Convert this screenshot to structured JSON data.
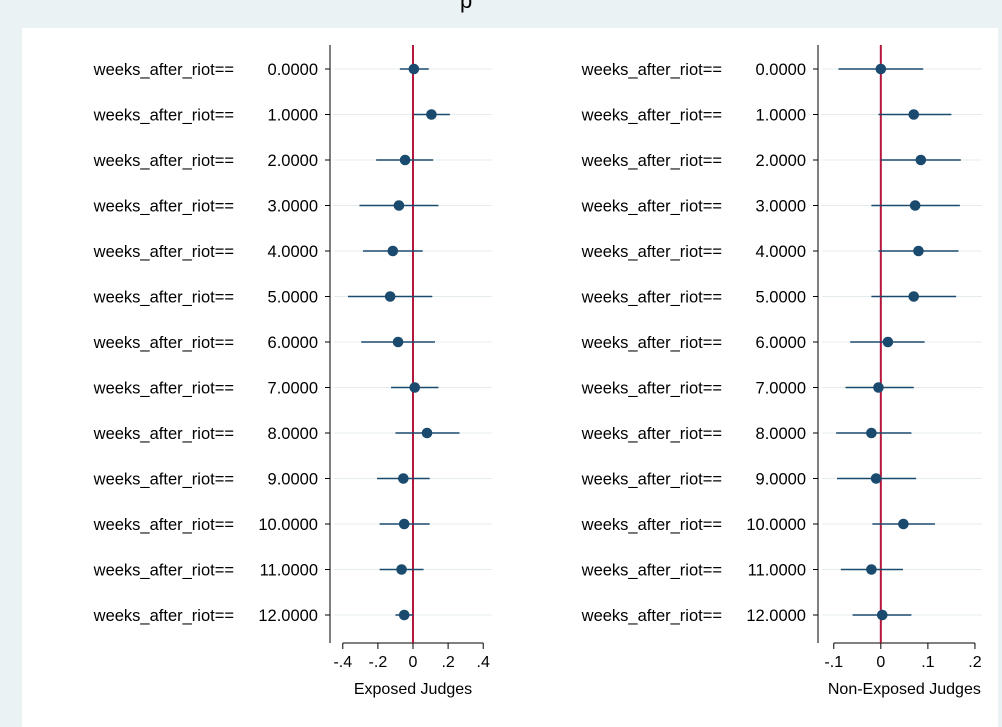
{
  "top_text": "p",
  "colors": {
    "background": "#eaf2f3",
    "plot_background": "#ffffff",
    "marker": "#1a4a6e",
    "ci_line": "#1a4a6e",
    "reference_line": "#b5163c",
    "gridline": "#e4ecee"
  },
  "chart_data": [
    {
      "type": "scatter",
      "subtype": "coefficient-plot",
      "xlabel": "Exposed Judges",
      "xlim": [
        -0.45,
        0.45
      ],
      "xticks": [
        -0.4,
        -0.2,
        0,
        0.2,
        0.4
      ],
      "xtick_labels": [
        "-.4",
        "-.2",
        "0",
        ".2",
        ".4"
      ],
      "reference_x": 0,
      "grid": true,
      "rows": [
        {
          "name": "weeks_after_riot==",
          "level": "0.0000",
          "coef": 0.005,
          "lo": -0.075,
          "hi": 0.09
        },
        {
          "name": "weeks_after_riot==",
          "level": "1.0000",
          "coef": 0.105,
          "lo": 0.005,
          "hi": 0.21
        },
        {
          "name": "weeks_after_riot==",
          "level": "2.0000",
          "coef": -0.045,
          "lo": -0.21,
          "hi": 0.115
        },
        {
          "name": "weeks_after_riot==",
          "level": "3.0000",
          "coef": -0.08,
          "lo": -0.305,
          "hi": 0.145
        },
        {
          "name": "weeks_after_riot==",
          "level": "4.0000",
          "coef": -0.115,
          "lo": -0.285,
          "hi": 0.055
        },
        {
          "name": "weeks_after_riot==",
          "level": "5.0000",
          "coef": -0.13,
          "lo": -0.37,
          "hi": 0.11
        },
        {
          "name": "weeks_after_riot==",
          "level": "6.0000",
          "coef": -0.085,
          "lo": -0.295,
          "hi": 0.125
        },
        {
          "name": "weeks_after_riot==",
          "level": "7.0000",
          "coef": 0.01,
          "lo": -0.125,
          "hi": 0.145
        },
        {
          "name": "weeks_after_riot==",
          "level": "8.0000",
          "coef": 0.08,
          "lo": -0.1,
          "hi": 0.265
        },
        {
          "name": "weeks_after_riot==",
          "level": "9.0000",
          "coef": -0.055,
          "lo": -0.205,
          "hi": 0.095
        },
        {
          "name": "weeks_after_riot==",
          "level": "10.0000",
          "coef": -0.05,
          "lo": -0.19,
          "hi": 0.095
        },
        {
          "name": "weeks_after_riot==",
          "level": "11.0000",
          "coef": -0.065,
          "lo": -0.19,
          "hi": 0.06
        },
        {
          "name": "weeks_after_riot==",
          "level": "12.0000",
          "coef": -0.05,
          "lo": -0.1,
          "hi": 0.0
        }
      ]
    },
    {
      "type": "scatter",
      "subtype": "coefficient-plot",
      "xlabel": "Non-Exposed Judges",
      "xlim": [
        -0.125,
        0.215
      ],
      "xticks": [
        -0.1,
        0,
        0.1,
        0.2
      ],
      "xtick_labels": [
        "-.1",
        "0",
        ".1",
        ".2"
      ],
      "reference_x": 0,
      "grid": true,
      "rows": [
        {
          "name": "weeks_after_riot==",
          "level": "0.0000",
          "coef": 0.0,
          "lo": -0.09,
          "hi": 0.09
        },
        {
          "name": "weeks_after_riot==",
          "level": "1.0000",
          "coef": 0.07,
          "lo": -0.005,
          "hi": 0.15
        },
        {
          "name": "weeks_after_riot==",
          "level": "2.0000",
          "coef": 0.085,
          "lo": 0.0,
          "hi": 0.17
        },
        {
          "name": "weeks_after_riot==",
          "level": "3.0000",
          "coef": 0.073,
          "lo": -0.02,
          "hi": 0.168
        },
        {
          "name": "weeks_after_riot==",
          "level": "4.0000",
          "coef": 0.08,
          "lo": -0.005,
          "hi": 0.165
        },
        {
          "name": "weeks_after_riot==",
          "level": "5.0000",
          "coef": 0.07,
          "lo": -0.02,
          "hi": 0.16
        },
        {
          "name": "weeks_after_riot==",
          "level": "6.0000",
          "coef": 0.015,
          "lo": -0.065,
          "hi": 0.093
        },
        {
          "name": "weeks_after_riot==",
          "level": "7.0000",
          "coef": -0.005,
          "lo": -0.075,
          "hi": 0.07
        },
        {
          "name": "weeks_after_riot==",
          "level": "8.0000",
          "coef": -0.02,
          "lo": -0.095,
          "hi": 0.065
        },
        {
          "name": "weeks_after_riot==",
          "level": "9.0000",
          "coef": -0.01,
          "lo": -0.093,
          "hi": 0.075
        },
        {
          "name": "weeks_after_riot==",
          "level": "10.0000",
          "coef": 0.048,
          "lo": -0.018,
          "hi": 0.115
        },
        {
          "name": "weeks_after_riot==",
          "level": "11.0000",
          "coef": -0.02,
          "lo": -0.085,
          "hi": 0.047
        },
        {
          "name": "weeks_after_riot==",
          "level": "12.0000",
          "coef": 0.003,
          "lo": -0.06,
          "hi": 0.065
        }
      ]
    }
  ]
}
